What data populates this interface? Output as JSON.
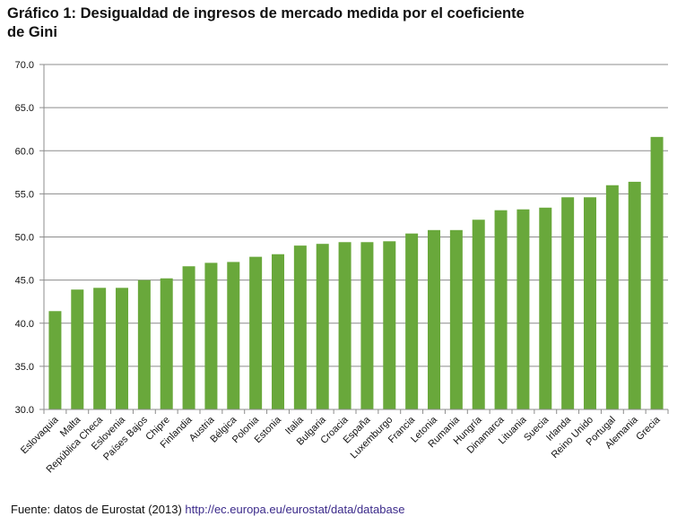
{
  "chart_data": {
    "type": "bar",
    "title": "Gráfico 1: Desigualdad de ingresos de mercado medida por el coeficiente de Gini",
    "title_lines": [
      "Gráfico 1: Desigualdad de ingresos de mercado medida por el coeficiente",
      "de Gini"
    ],
    "xlabel": "",
    "ylabel": "",
    "ylim": [
      30,
      70
    ],
    "yticks": [
      "30.0",
      "35.0",
      "40.0",
      "45.0",
      "50.0",
      "55.0",
      "60.0",
      "65.0",
      "70.0"
    ],
    "grid": true,
    "legend": "none",
    "bar_color": "#69a83b",
    "categories": [
      "Eslovaquia",
      "Malta",
      "República Checa",
      "Eslovenia",
      "Países Bajos",
      "Chipre",
      "Finlandia",
      "Austria",
      "Bélgica",
      "Polonia",
      "Estonia",
      "Italia",
      "Bulgaria",
      "Croacia",
      "España",
      "Luxemburgo",
      "Francia",
      "Letonia",
      "Rumania",
      "Hungría",
      "Dinamarca",
      "Lituania",
      "Suecia",
      "Irlanda",
      "Reino Unido",
      "Portugal",
      "Alemania",
      "Grecia"
    ],
    "values": [
      41.4,
      43.9,
      44.1,
      44.1,
      45.0,
      45.2,
      46.6,
      47.0,
      47.1,
      47.7,
      48.0,
      49.0,
      49.2,
      49.4,
      49.4,
      49.5,
      50.4,
      50.8,
      50.8,
      52.0,
      53.1,
      53.2,
      53.4,
      54.6,
      54.6,
      56.0,
      56.4,
      61.6
    ]
  },
  "source": {
    "prefix": "Fuente: datos de Eurostat (2013)",
    "link": "http://ec.europa.eu/eurostat/data/database"
  }
}
